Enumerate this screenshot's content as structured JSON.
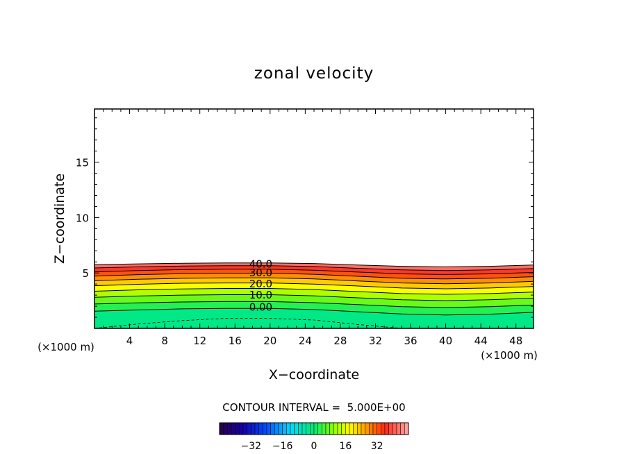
{
  "chart_data": {
    "type": "contour",
    "title": "zonal velocity",
    "xlabel": "X−coordinate",
    "ylabel": "Z−coordinate",
    "x_unit_left": "(×1000 m)",
    "x_unit_right": "(×1000 m)",
    "xlim": [
      0,
      50
    ],
    "ylim": [
      0,
      19.8
    ],
    "xticks": [
      4,
      8,
      12,
      16,
      20,
      24,
      28,
      32,
      36,
      40,
      44,
      48
    ],
    "yticks": [
      5,
      10,
      15
    ],
    "contour_interval_label": "CONTOUR INTERVAL =  5.000E+00",
    "contour_labels": [
      {
        "text": "40.0",
        "value": 40,
        "x": 17.2,
        "z": 5.8
      },
      {
        "text": "30.0",
        "value": 30,
        "x": 17.2,
        "z": 5.0
      },
      {
        "text": "20.0",
        "value": 20,
        "x": 17.2,
        "z": 4.0
      },
      {
        "text": "10.0",
        "value": 10,
        "x": 17.2,
        "z": 3.0
      },
      {
        "text": "0.00",
        "value": 0,
        "x": 17.2,
        "z": 1.9
      }
    ],
    "contour_x": [
      0,
      5,
      10,
      15,
      20,
      25,
      30,
      35,
      40,
      45,
      50
    ],
    "contours": [
      {
        "value": 45,
        "z": [
          5.75,
          5.82,
          5.88,
          5.9,
          5.9,
          5.85,
          5.72,
          5.6,
          5.55,
          5.6,
          5.72
        ]
      },
      {
        "value": 40,
        "z": [
          5.45,
          5.55,
          5.62,
          5.66,
          5.66,
          5.58,
          5.42,
          5.28,
          5.22,
          5.28,
          5.4
        ]
      },
      {
        "value": 35,
        "z": [
          5.1,
          5.22,
          5.3,
          5.34,
          5.34,
          5.25,
          5.08,
          4.92,
          4.86,
          4.92,
          5.05
        ]
      },
      {
        "value": 30,
        "z": [
          4.72,
          4.85,
          4.94,
          4.98,
          4.98,
          4.88,
          4.7,
          4.52,
          4.46,
          4.52,
          4.66
        ]
      },
      {
        "value": 25,
        "z": [
          4.3,
          4.43,
          4.52,
          4.56,
          4.56,
          4.46,
          4.28,
          4.1,
          4.03,
          4.1,
          4.24
        ]
      },
      {
        "value": 20,
        "z": [
          3.85,
          3.98,
          4.07,
          4.1,
          4.1,
          4.0,
          3.82,
          3.64,
          3.57,
          3.64,
          3.78
        ]
      },
      {
        "value": 15,
        "z": [
          3.35,
          3.48,
          3.56,
          3.6,
          3.6,
          3.5,
          3.32,
          3.14,
          3.07,
          3.14,
          3.28
        ]
      },
      {
        "value": 10,
        "z": [
          2.8,
          2.92,
          3.0,
          3.04,
          3.04,
          2.94,
          2.76,
          2.58,
          2.5,
          2.58,
          2.72
        ]
      },
      {
        "value": 5,
        "z": [
          2.2,
          2.3,
          2.38,
          2.42,
          2.42,
          2.32,
          2.14,
          1.96,
          1.88,
          1.96,
          2.1
        ]
      },
      {
        "value": 0,
        "z": [
          1.55,
          1.66,
          1.76,
          1.8,
          1.8,
          1.7,
          1.5,
          1.3,
          1.2,
          1.28,
          1.45
        ]
      },
      {
        "value": -5,
        "dashed": true,
        "z": [
          0.0,
          0.4,
          0.7,
          0.9,
          0.9,
          0.75,
          0.35,
          0.0,
          null,
          null,
          null
        ]
      }
    ],
    "colorbar": {
      "ticks": [
        -32,
        -16,
        0,
        16,
        32
      ],
      "tick_labels": [
        "−32",
        "−16",
        "0",
        "16",
        "32"
      ],
      "range": [
        -48,
        48
      ]
    }
  }
}
